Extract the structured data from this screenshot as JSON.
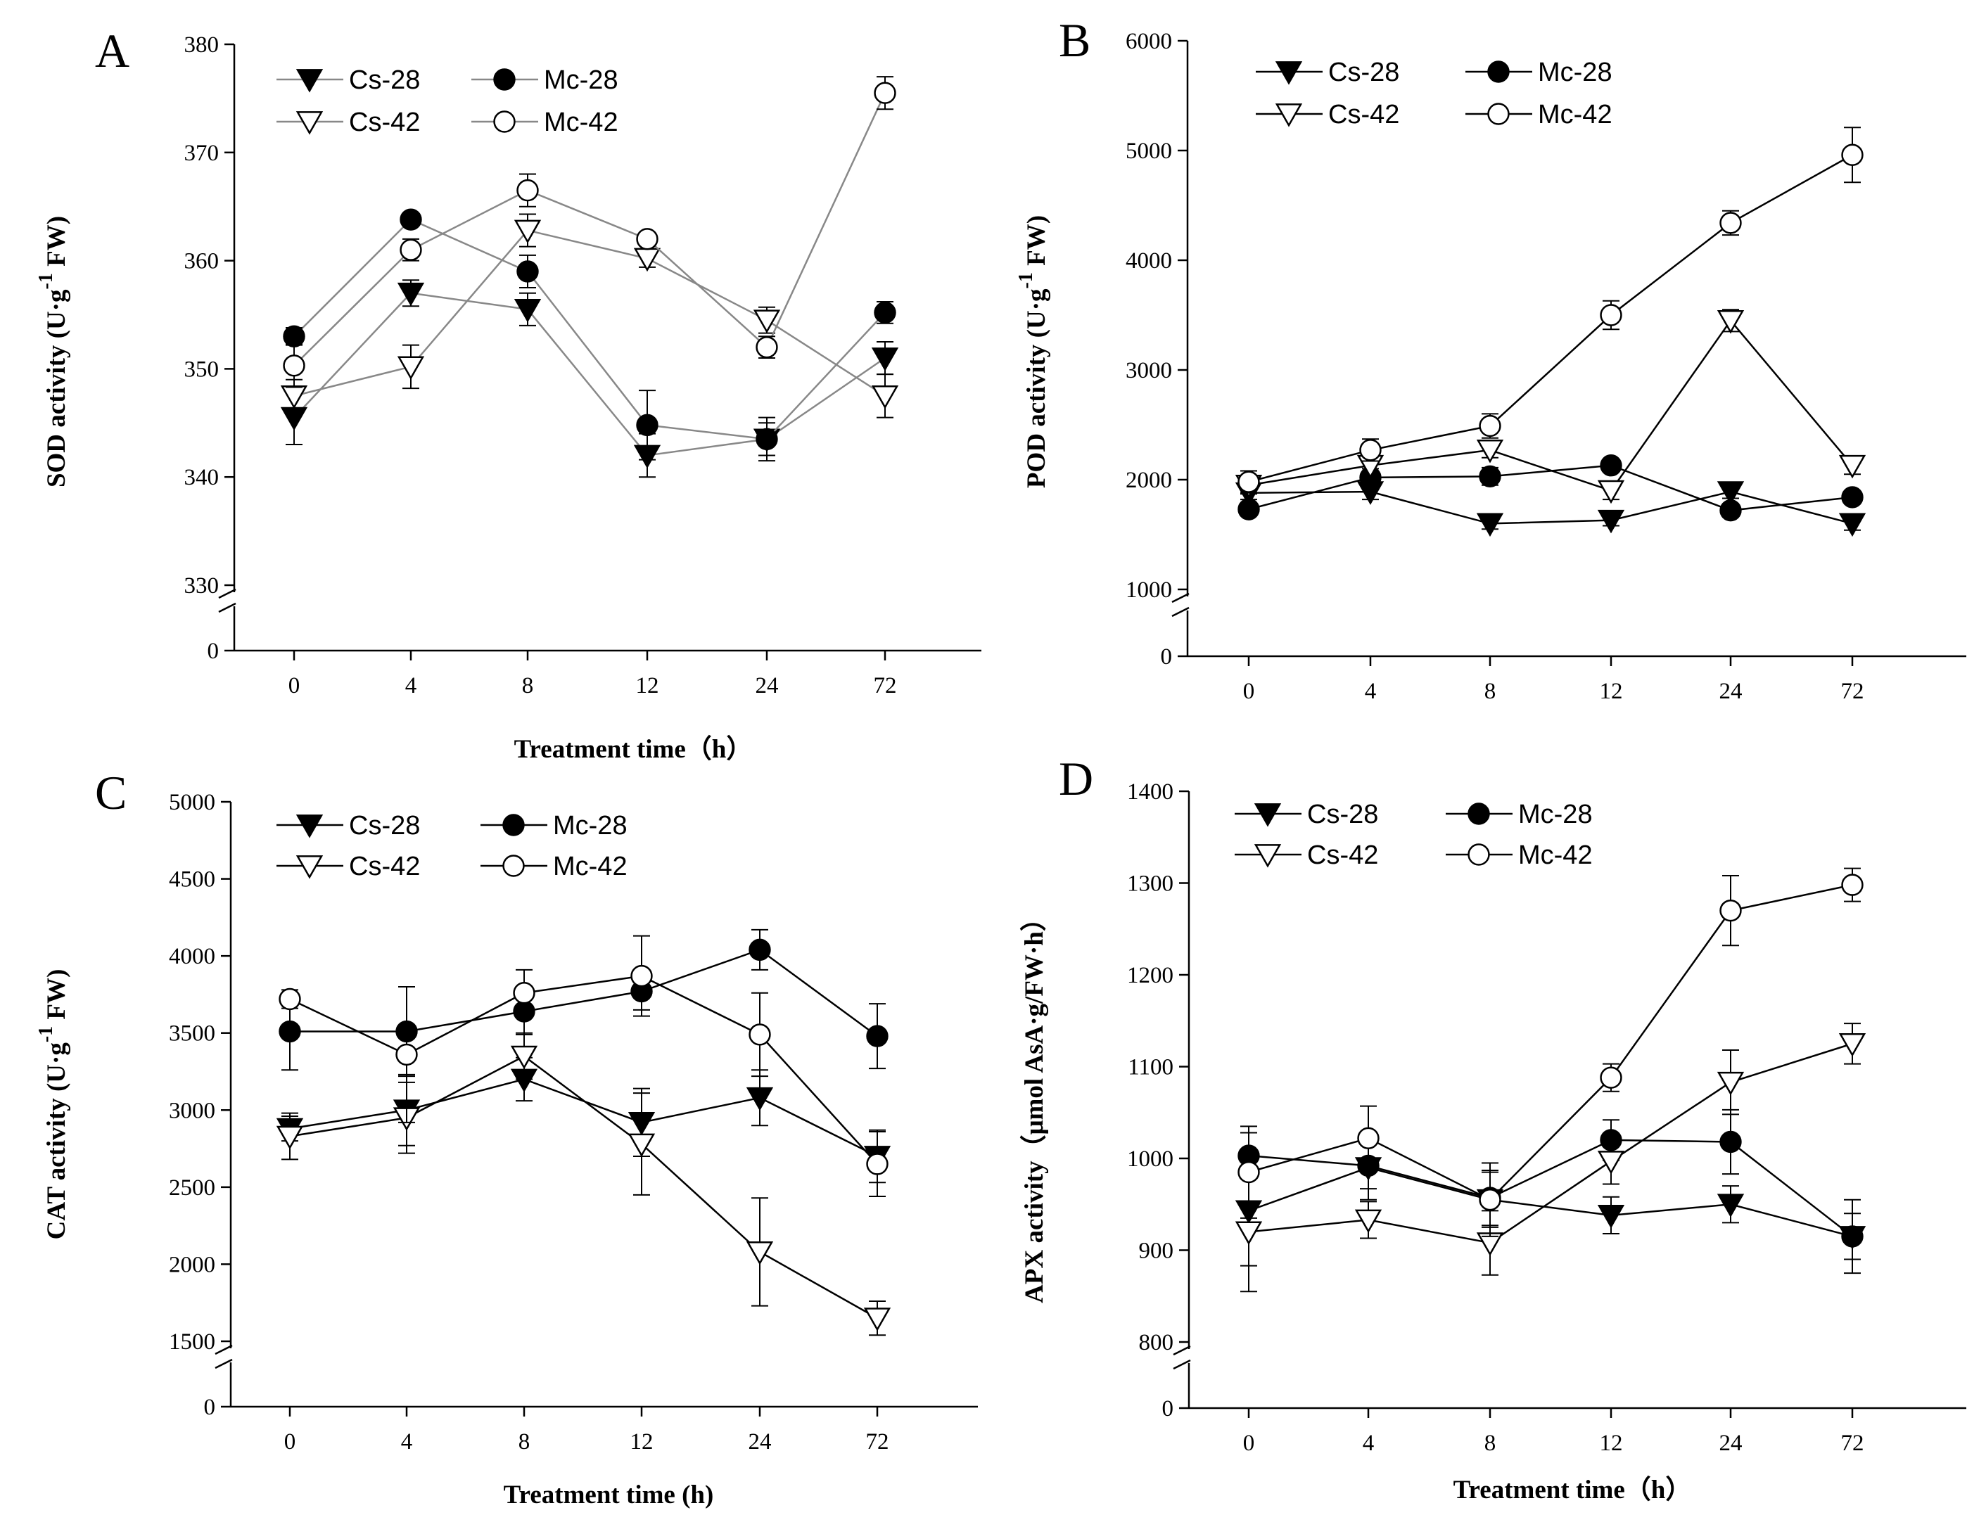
{
  "chart_data": [
    {
      "panel": "A",
      "type": "line",
      "categories": [
        "0",
        "4",
        "8",
        "12",
        "24",
        "72"
      ],
      "xlabel": "Treatment time（h）",
      "ylabel": "SOD activity (U·g",
      "ylabel_sup": "-1",
      "ylabel_tail": " FW)",
      "yticks": [
        "0",
        "330",
        "340",
        "350",
        "360",
        "370",
        "380"
      ],
      "ylim": [
        330,
        380
      ],
      "axis_break": true,
      "series": [
        {
          "name": "Cs-28",
          "marker": "triangle-down-filled",
          "values": [
            345.5,
            357,
            355.5,
            342,
            343.5,
            351
          ],
          "err": [
            2.5,
            1.2,
            1.5,
            2,
            1.5,
            1.5
          ]
        },
        {
          "name": "Mc-28",
          "marker": "circle-filled",
          "values": [
            353,
            363.8,
            359,
            344.8,
            343.5,
            355.2
          ],
          "err": [
            0.8,
            0.5,
            1.5,
            3.2,
            2,
            1
          ]
        },
        {
          "name": "Cs-42",
          "marker": "triangle-down-open",
          "values": [
            347.5,
            350.2,
            362.8,
            360.2,
            354.5,
            347.5
          ],
          "err": [
            1.5,
            2,
            1.5,
            0.8,
            1.2,
            2
          ]
        },
        {
          "name": "Mc-42",
          "marker": "circle-open",
          "values": [
            350.3,
            361,
            366.5,
            362,
            352,
            375.5
          ],
          "err": [
            2,
            1,
            1.5,
            0.5,
            1,
            1.5
          ]
        }
      ]
    },
    {
      "panel": "B",
      "type": "line",
      "categories": [
        "0",
        "4",
        "8",
        "12",
        "24",
        "72"
      ],
      "xlabel": "",
      "ylabel": "POD activity (U·g",
      "ylabel_sup": "-1",
      "ylabel_tail": " FW)",
      "yticks": [
        "0",
        "1000",
        "2000",
        "3000",
        "4000",
        "5000",
        "6000"
      ],
      "ylim": [
        1000,
        6000
      ],
      "axis_break": true,
      "series": [
        {
          "name": "Cs-28",
          "marker": "triangle-down-filled",
          "values": [
            1880,
            1890,
            1600,
            1630,
            1890,
            1600
          ],
          "err": [
            60,
            70,
            50,
            50,
            60,
            60
          ]
        },
        {
          "name": "Mc-28",
          "marker": "circle-filled",
          "values": [
            1730,
            2020,
            2030,
            2130,
            1720,
            1840
          ],
          "err": [
            60,
            80,
            80,
            50,
            60,
            60
          ]
        },
        {
          "name": "Cs-42",
          "marker": "triangle-down-open",
          "values": [
            1950,
            2130,
            2270,
            1900,
            3450,
            2130
          ],
          "err": [
            80,
            80,
            70,
            80,
            100,
            80
          ]
        },
        {
          "name": "Mc-42",
          "marker": "circle-open",
          "values": [
            1980,
            2270,
            2490,
            3500,
            4340,
            4960
          ],
          "err": [
            100,
            100,
            110,
            130,
            110,
            250
          ]
        }
      ]
    },
    {
      "panel": "C",
      "type": "line",
      "categories": [
        "0",
        "4",
        "8",
        "12",
        "24",
        "72"
      ],
      "xlabel": "Treatment time (h)",
      "ylabel": "CAT activity (U·g",
      "ylabel_sup": "-1",
      "ylabel_tail": " FW)",
      "yticks": [
        "0",
        "1500",
        "2000",
        "2500",
        "3000",
        "3500",
        "4000",
        "4500",
        "5000"
      ],
      "ylim": [
        1500,
        5000
      ],
      "axis_break": true,
      "series": [
        {
          "name": "Cs-28",
          "marker": "triangle-down-filled",
          "values": [
            2880,
            3000,
            3200,
            2920,
            3080,
            2700
          ],
          "err": [
            80,
            230,
            140,
            220,
            180,
            170
          ]
        },
        {
          "name": "Mc-28",
          "marker": "circle-filled",
          "values": [
            3510,
            3510,
            3640,
            3770,
            4040,
            3480
          ],
          "err": [
            250,
            290,
            150,
            120,
            130,
            210
          ]
        },
        {
          "name": "Cs-42",
          "marker": "triangle-down-open",
          "values": [
            2830,
            2950,
            3350,
            2780,
            2080,
            1650
          ],
          "err": [
            150,
            230,
            150,
            330,
            350,
            110
          ]
        },
        {
          "name": "Mc-42",
          "marker": "circle-open",
          "values": [
            3720,
            3360,
            3760,
            3870,
            3490,
            2650
          ],
          "err": [
            60,
            440,
            150,
            260,
            270,
            210
          ]
        }
      ]
    },
    {
      "panel": "D",
      "type": "line",
      "categories": [
        "0",
        "4",
        "8",
        "12",
        "24",
        "72"
      ],
      "xlabel": "Treatment time（h）",
      "ylabel": "APX activity（μmol AsA·g/FW·h）",
      "ylabel_sup": "",
      "ylabel_tail": "",
      "yticks": [
        "0",
        "800",
        "900",
        "1000",
        "1100",
        "1200",
        "1300",
        "1400"
      ],
      "ylim": [
        800,
        1400
      ],
      "axis_break": true,
      "series": [
        {
          "name": "Cs-28",
          "marker": "triangle-down-filled",
          "values": [
            943,
            990,
            955,
            938,
            950,
            915
          ],
          "err": [
            60,
            35,
            30,
            20,
            20,
            40
          ]
        },
        {
          "name": "Mc-28",
          "marker": "circle-filled",
          "values": [
            1003,
            992,
            957,
            1020,
            1018,
            915
          ],
          "err": [
            25,
            25,
            30,
            22,
            35,
            25
          ]
        },
        {
          "name": "Cs-42",
          "marker": "triangle-down-open",
          "values": [
            920,
            933,
            908,
            997,
            1083,
            1125
          ],
          "err": [
            65,
            20,
            35,
            25,
            35,
            22
          ]
        },
        {
          "name": "Mc-42",
          "marker": "circle-open",
          "values": [
            985,
            1022,
            955,
            1088,
            1270,
            1298
          ],
          "err": [
            50,
            35,
            40,
            15,
            38,
            18
          ]
        }
      ]
    }
  ]
}
